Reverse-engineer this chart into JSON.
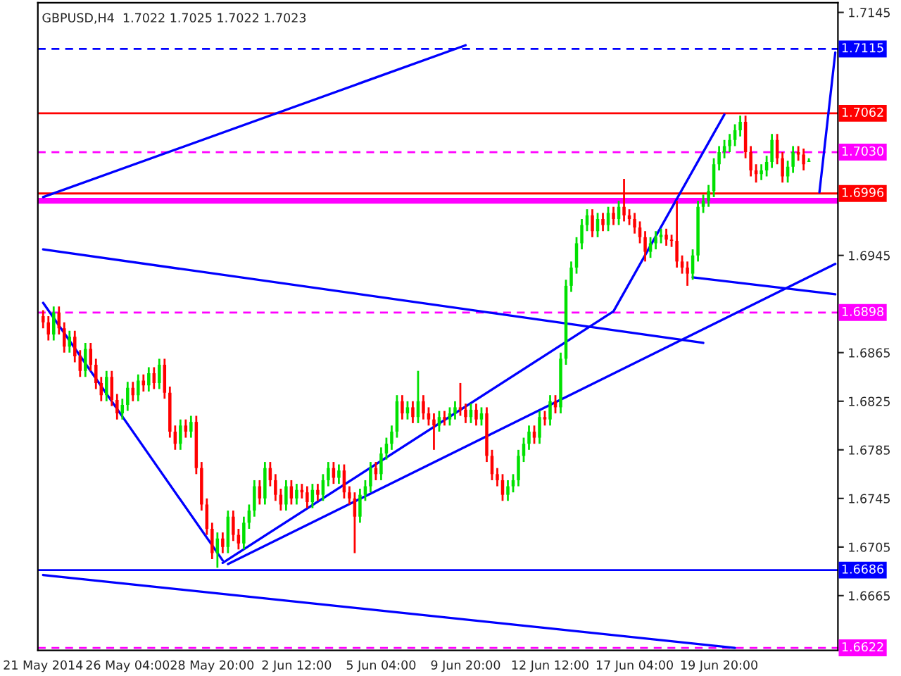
{
  "chart_data": {
    "type": "candlestick",
    "title": "GBPUSD,H4  1.7022 1.7025 1.7022 1.7023",
    "categories": [
      "21 May 2014",
      null,
      null,
      null,
      null,
      null,
      null,
      null,
      null,
      null,
      null,
      null,
      null,
      null,
      null,
      null,
      "26 May 04:00",
      null,
      null,
      null,
      null,
      null,
      null,
      null,
      null,
      null,
      null,
      null,
      null,
      null,
      null,
      null,
      "28 May 20:00",
      null,
      null,
      null,
      null,
      null,
      null,
      null,
      null,
      null,
      null,
      null,
      null,
      null,
      null,
      null,
      "2 Jun 12:00",
      null,
      null,
      null,
      null,
      null,
      null,
      null,
      null,
      null,
      null,
      null,
      null,
      null,
      null,
      null,
      "5 Jun 04:00",
      null,
      null,
      null,
      null,
      null,
      null,
      null,
      null,
      null,
      null,
      null,
      null,
      null,
      null,
      null,
      "9 Jun 20:00",
      null,
      null,
      null,
      null,
      null,
      null,
      null,
      null,
      null,
      null,
      null,
      null,
      null,
      null,
      null,
      "12 Jun 12:00",
      null,
      null,
      null,
      null,
      null,
      null,
      null,
      null,
      null,
      null,
      null,
      null,
      null,
      null,
      null,
      "17 Jun 04:00",
      null,
      null,
      null,
      null,
      null,
      null,
      null,
      null,
      null,
      null,
      null,
      null,
      null,
      null,
      null,
      "19 Jun 20:00",
      null,
      null,
      null,
      null,
      null,
      null,
      null,
      null,
      null,
      null,
      null,
      null,
      null,
      null,
      null,
      null,
      null,
      null,
      null,
      null,
      null,
      null
    ],
    "ohlc": [
      [
        1.6895,
        1.69,
        1.6885,
        1.689
      ],
      [
        1.689,
        1.6895,
        1.6875,
        1.688
      ],
      [
        1.688,
        1.6903,
        1.6875,
        1.6898
      ],
      [
        1.6898,
        1.6903,
        1.688,
        1.6885
      ],
      [
        1.6885,
        1.689,
        1.6865,
        1.687
      ],
      [
        1.687,
        1.6883,
        1.6865,
        1.6878
      ],
      [
        1.6878,
        1.6883,
        1.6857,
        1.6862
      ],
      [
        1.6862,
        1.6867,
        1.6845,
        1.685
      ],
      [
        1.685,
        1.6873,
        1.6845,
        1.6868
      ],
      [
        1.6868,
        1.6873,
        1.685,
        1.6855
      ],
      [
        1.6855,
        1.686,
        1.6835,
        1.684
      ],
      [
        1.684,
        1.6845,
        1.6825,
        1.683
      ],
      [
        1.683,
        1.685,
        1.6825,
        1.6845
      ],
      [
        1.6845,
        1.685,
        1.6821,
        1.6826
      ],
      [
        1.6826,
        1.6831,
        1.681,
        1.6815
      ],
      [
        1.6815,
        1.6827,
        1.681,
        1.6822
      ],
      [
        1.6822,
        1.6841,
        1.6817,
        1.6836
      ],
      [
        1.6836,
        1.6841,
        1.6825,
        1.683
      ],
      [
        1.683,
        1.6847,
        1.6825,
        1.6842
      ],
      [
        1.6842,
        1.6847,
        1.6833,
        1.6838
      ],
      [
        1.6838,
        1.6853,
        1.6833,
        1.6848
      ],
      [
        1.6848,
        1.6853,
        1.6835,
        1.684
      ],
      [
        1.684,
        1.686,
        1.6835,
        1.6855
      ],
      [
        1.6855,
        1.686,
        1.6827,
        1.6832
      ],
      [
        1.6832,
        1.6837,
        1.6795,
        1.68
      ],
      [
        1.68,
        1.6805,
        1.6785,
        1.679
      ],
      [
        1.679,
        1.681,
        1.6785,
        1.6805
      ],
      [
        1.6805,
        1.681,
        1.6795,
        1.68
      ],
      [
        1.68,
        1.6813,
        1.6795,
        1.6808
      ],
      [
        1.6808,
        1.6813,
        1.6765,
        1.677
      ],
      [
        1.677,
        1.6775,
        1.6735,
        1.674
      ],
      [
        1.674,
        1.6745,
        1.6715,
        1.672
      ],
      [
        1.672,
        1.6725,
        1.6695,
        1.67
      ],
      [
        1.67,
        1.6717,
        1.6688,
        1.6712
      ],
      [
        1.6712,
        1.6717,
        1.67,
        1.6705
      ],
      [
        1.6705,
        1.6735,
        1.67,
        1.673
      ],
      [
        1.673,
        1.6735,
        1.671,
        1.6715
      ],
      [
        1.6715,
        1.672,
        1.6703,
        1.6708
      ],
      [
        1.6708,
        1.673,
        1.6703,
        1.6725
      ],
      [
        1.6725,
        1.674,
        1.672,
        1.6735
      ],
      [
        1.6735,
        1.676,
        1.673,
        1.6755
      ],
      [
        1.6755,
        1.676,
        1.674,
        1.6745
      ],
      [
        1.6745,
        1.6775,
        1.674,
        1.677
      ],
      [
        1.677,
        1.6775,
        1.6755,
        1.676
      ],
      [
        1.676,
        1.6765,
        1.6743,
        1.6748
      ],
      [
        1.6748,
        1.6753,
        1.6735,
        1.674
      ],
      [
        1.674,
        1.676,
        1.6735,
        1.6755
      ],
      [
        1.6755,
        1.676,
        1.674,
        1.6745
      ],
      [
        1.6745,
        1.6757,
        1.674,
        1.6752
      ],
      [
        1.6752,
        1.6757,
        1.6745,
        1.675
      ],
      [
        1.675,
        1.6755,
        1.6737,
        1.6742
      ],
      [
        1.6742,
        1.6757,
        1.6737,
        1.6752
      ],
      [
        1.6752,
        1.6757,
        1.6743,
        1.6748
      ],
      [
        1.6748,
        1.6765,
        1.6743,
        1.676
      ],
      [
        1.676,
        1.6775,
        1.6755,
        1.677
      ],
      [
        1.677,
        1.6775,
        1.6757,
        1.6762
      ],
      [
        1.6762,
        1.6773,
        1.6757,
        1.6768
      ],
      [
        1.6768,
        1.6773,
        1.6745,
        1.675
      ],
      [
        1.675,
        1.6755,
        1.674,
        1.6745
      ],
      [
        1.6745,
        1.675,
        1.67,
        1.673
      ],
      [
        1.673,
        1.6753,
        1.6725,
        1.6748
      ],
      [
        1.6748,
        1.676,
        1.6743,
        1.6755
      ],
      [
        1.6755,
        1.6775,
        1.675,
        1.677
      ],
      [
        1.677,
        1.6775,
        1.676,
        1.6765
      ],
      [
        1.6765,
        1.6787,
        1.676,
        1.6782
      ],
      [
        1.6782,
        1.6795,
        1.6777,
        1.679
      ],
      [
        1.679,
        1.6805,
        1.6785,
        1.68
      ],
      [
        1.68,
        1.683,
        1.6795,
        1.6825
      ],
      [
        1.6825,
        1.683,
        1.681,
        1.6815
      ],
      [
        1.6815,
        1.6825,
        1.681,
        1.682
      ],
      [
        1.682,
        1.6825,
        1.6807,
        1.6812
      ],
      [
        1.6812,
        1.685,
        1.6807,
        1.6825
      ],
      [
        1.6825,
        1.683,
        1.681,
        1.6815
      ],
      [
        1.6815,
        1.682,
        1.6805,
        1.681
      ],
      [
        1.681,
        1.6815,
        1.6785,
        1.6805
      ],
      [
        1.6805,
        1.6817,
        1.68,
        1.6812
      ],
      [
        1.6812,
        1.6817,
        1.6805,
        1.681
      ],
      [
        1.681,
        1.682,
        1.6805,
        1.6815
      ],
      [
        1.6815,
        1.6825,
        1.681,
        1.682
      ],
      [
        1.682,
        1.684,
        1.6813,
        1.6818
      ],
      [
        1.6818,
        1.6823,
        1.6807,
        1.6812
      ],
      [
        1.6812,
        1.6823,
        1.6807,
        1.6818
      ],
      [
        1.6818,
        1.6823,
        1.6805,
        1.681
      ],
      [
        1.681,
        1.682,
        1.6805,
        1.6815
      ],
      [
        1.6815,
        1.682,
        1.6775,
        1.678
      ],
      [
        1.678,
        1.6785,
        1.676,
        1.6765
      ],
      [
        1.6765,
        1.677,
        1.6755,
        1.676
      ],
      [
        1.676,
        1.6765,
        1.6743,
        1.6748
      ],
      [
        1.6748,
        1.676,
        1.6743,
        1.6755
      ],
      [
        1.6755,
        1.6765,
        1.675,
        1.676
      ],
      [
        1.676,
        1.6785,
        1.6755,
        1.678
      ],
      [
        1.678,
        1.6795,
        1.6775,
        1.679
      ],
      [
        1.679,
        1.6805,
        1.6785,
        1.68
      ],
      [
        1.68,
        1.6805,
        1.679,
        1.6795
      ],
      [
        1.6795,
        1.6817,
        1.679,
        1.6812
      ],
      [
        1.6812,
        1.6817,
        1.6805,
        1.681
      ],
      [
        1.681,
        1.683,
        1.6805,
        1.6825
      ],
      [
        1.6825,
        1.683,
        1.6815,
        1.682
      ],
      [
        1.682,
        1.6865,
        1.6815,
        1.686
      ],
      [
        1.686,
        1.6925,
        1.6855,
        1.692
      ],
      [
        1.692,
        1.694,
        1.6915,
        1.6935
      ],
      [
        1.6935,
        1.696,
        1.693,
        1.6955
      ],
      [
        1.6955,
        1.6975,
        1.695,
        1.697
      ],
      [
        1.697,
        1.6983,
        1.6965,
        1.6978
      ],
      [
        1.6978,
        1.6983,
        1.696,
        1.6965
      ],
      [
        1.6965,
        1.698,
        1.696,
        1.6975
      ],
      [
        1.6975,
        1.698,
        1.6965,
        1.697
      ],
      [
        1.697,
        1.6985,
        1.6965,
        1.698
      ],
      [
        1.698,
        1.6985,
        1.697,
        1.6975
      ],
      [
        1.6975,
        1.699,
        1.697,
        1.6985
      ],
      [
        1.6985,
        1.7008,
        1.6973,
        1.6978
      ],
      [
        1.6978,
        1.6983,
        1.697,
        1.6975
      ],
      [
        1.6975,
        1.698,
        1.6963,
        1.6968
      ],
      [
        1.6968,
        1.6973,
        1.6955,
        1.696
      ],
      [
        1.696,
        1.6965,
        1.694,
        1.6948
      ],
      [
        1.6948,
        1.696,
        1.6943,
        1.6955
      ],
      [
        1.6955,
        1.6965,
        1.695,
        1.696
      ],
      [
        1.696,
        1.6967,
        1.6955,
        1.6962
      ],
      [
        1.6962,
        1.6967,
        1.6953,
        1.6958
      ],
      [
        1.6958,
        1.6962,
        1.6952,
        1.6957
      ],
      [
        1.6957,
        1.699,
        1.6935,
        1.694
      ],
      [
        1.694,
        1.6945,
        1.693,
        1.6935
      ],
      [
        1.6935,
        1.694,
        1.692,
        1.693
      ],
      [
        1.693,
        1.695,
        1.6925,
        1.6945
      ],
      [
        1.6945,
        1.699,
        1.694,
        1.6985
      ],
      [
        1.6985,
        1.6995,
        1.698,
        1.699
      ],
      [
        1.699,
        1.7003,
        1.6985,
        1.6998
      ],
      [
        1.6998,
        1.7025,
        1.6993,
        1.702
      ],
      [
        1.702,
        1.7035,
        1.7015,
        1.703
      ],
      [
        1.703,
        1.704,
        1.7025,
        1.7035
      ],
      [
        1.7035,
        1.7045,
        1.703,
        1.704
      ],
      [
        1.704,
        1.7053,
        1.7035,
        1.7048
      ],
      [
        1.7048,
        1.706,
        1.7043,
        1.7055
      ],
      [
        1.7055,
        1.706,
        1.7025,
        1.703
      ],
      [
        1.703,
        1.7035,
        1.701,
        1.7015
      ],
      [
        1.7015,
        1.702,
        1.7005,
        1.7012
      ],
      [
        1.7012,
        1.702,
        1.7007,
        1.7015
      ],
      [
        1.7015,
        1.7027,
        1.701,
        1.7022
      ],
      [
        1.7022,
        1.7045,
        1.7017,
        1.704
      ],
      [
        1.704,
        1.7045,
        1.702,
        1.7025
      ],
      [
        1.7025,
        1.703,
        1.7005,
        1.701
      ],
      [
        1.701,
        1.7023,
        1.7005,
        1.7018
      ],
      [
        1.7018,
        1.7035,
        1.7013,
        1.703
      ],
      [
        1.703,
        1.7035,
        1.7023,
        1.7028
      ],
      [
        1.7028,
        1.7033,
        1.7015,
        1.702
      ],
      [
        1.7022,
        1.7025,
        1.7022,
        1.7023
      ],
      null,
      null,
      null,
      null,
      null
    ],
    "colors": [
      "#ff0000",
      "#ff0000",
      "#00e000",
      "#ff0000",
      "#ff0000",
      "#00e000",
      "#ff0000",
      "#ff0000",
      "#00e000",
      "#ff0000",
      "#ff0000",
      "#ff0000",
      "#00e000",
      "#ff0000",
      "#ff0000",
      "#00e000",
      "#00e000",
      "#ff0000",
      "#00e000",
      "#ff0000",
      "#00e000",
      "#ff0000",
      "#00e000",
      "#ff0000",
      "#ff0000",
      "#ff0000",
      "#00e000",
      "#ff0000",
      "#00e000",
      "#ff0000",
      "#ff0000",
      "#ff0000",
      "#ff0000",
      "#00e000",
      "#ff0000",
      "#00e000",
      "#ff0000",
      "#ff0000",
      "#00e000",
      "#00e000",
      "#00e000",
      "#ff0000",
      "#00e000",
      "#ff0000",
      "#ff0000",
      "#ff0000",
      "#00e000",
      "#ff0000",
      "#00e000",
      "#ff0000",
      "#ff0000",
      "#00e000",
      "#ff0000",
      "#00e000",
      "#00e000",
      "#ff0000",
      "#00e000",
      "#ff0000",
      "#ff0000",
      "#ff0000",
      "#00e000",
      "#00e000",
      "#00e000",
      "#ff0000",
      "#00e000",
      "#00e000",
      "#00e000",
      "#00e000",
      "#ff0000",
      "#00e000",
      "#ff0000",
      "#00e000",
      "#ff0000",
      "#ff0000",
      "#ff0000",
      "#00e000",
      "#ff0000",
      "#00e000",
      "#00e000",
      "#ff0000",
      "#ff0000",
      "#00e000",
      "#ff0000",
      "#00e000",
      "#ff0000",
      "#ff0000",
      "#ff0000",
      "#ff0000",
      "#00e000",
      "#00e000",
      "#00e000",
      "#00e000",
      "#00e000",
      "#ff0000",
      "#00e000",
      "#ff0000",
      "#00e000",
      "#ff0000",
      "#00e000",
      "#00e000",
      "#00e000",
      "#00e000",
      "#00e000",
      "#00e000",
      "#ff0000",
      "#00e000",
      "#ff0000",
      "#00e000",
      "#ff0000",
      "#00e000",
      "#ff0000",
      "#ff0000",
      "#ff0000",
      "#ff0000",
      "#ff0000",
      "#00e000",
      "#00e000",
      "#00e000",
      "#ff0000",
      "#ff0000",
      "#ff0000",
      "#ff0000",
      "#ff0000",
      "#00e000",
      "#00e000",
      "#00e000",
      "#00e000",
      "#00e000",
      "#00e000",
      "#00e000",
      "#00e000",
      "#00e000",
      "#00e000",
      "#ff0000",
      "#ff0000",
      "#ff0000",
      "#00e000",
      "#00e000",
      "#00e000",
      "#ff0000",
      "#ff0000",
      "#00e000",
      "#00e000",
      "#ff0000",
      "#ff0000",
      "#00e000",
      null,
      null,
      null,
      null,
      null
    ],
    "series": [
      {
        "type": "line",
        "color": "#0000ff",
        "values": [
          1.6906,
          null,
          null,
          null,
          null,
          null,
          null,
          null,
          null,
          null,
          null,
          null,
          null,
          null,
          null,
          null,
          null,
          null,
          null,
          null,
          null,
          null,
          null,
          null,
          null,
          null,
          null,
          null,
          null,
          null,
          null,
          null,
          null,
          null,
          1.6694,
          null,
          null,
          null,
          null,
          null,
          null,
          null,
          null,
          null,
          null,
          null,
          null,
          null,
          null,
          null,
          null,
          null,
          null,
          null,
          null,
          null,
          null,
          null,
          null,
          null,
          null,
          null,
          null,
          null,
          null,
          null,
          null,
          null,
          null,
          null,
          null,
          null,
          null,
          null,
          null,
          null,
          null,
          null,
          null,
          null,
          null,
          null,
          null,
          null,
          null,
          null,
          null,
          null,
          null,
          null,
          null,
          null,
          null,
          null,
          null,
          null,
          null,
          null,
          null,
          null,
          null,
          null,
          null,
          null,
          null,
          null,
          null,
          null,
          null,
          null,
          null,
          null,
          null,
          null,
          null,
          null,
          null,
          null,
          null,
          null,
          null,
          null,
          null,
          null,
          null,
          null,
          null,
          null,
          null,
          null,
          null,
          null,
          null,
          null,
          null,
          null,
          null,
          null,
          null,
          null,
          null,
          null,
          null,
          null,
          null,
          null,
          null,
          null,
          null,
          null,
          null
        ]
      },
      {
        "type": "line",
        "color": "#0000ff",
        "values": [
          null,
          null,
          null,
          null,
          null,
          null,
          null,
          null,
          null,
          null,
          null,
          null,
          null,
          null,
          null,
          null,
          null,
          null,
          null,
          null,
          null,
          null,
          null,
          null,
          null,
          null,
          null,
          null,
          null,
          null,
          null,
          null,
          null,
          null,
          1.6692,
          null,
          null,
          null,
          null,
          null,
          null,
          null,
          null,
          null,
          null,
          null,
          null,
          null,
          null,
          null,
          null,
          null,
          null,
          null,
          null,
          null,
          null,
          null,
          null,
          null,
          null,
          null,
          null,
          null,
          null,
          null,
          null,
          null,
          null,
          null,
          null,
          null,
          null,
          null,
          null,
          null,
          null,
          null,
          null,
          null,
          null,
          null,
          null,
          null,
          null,
          null,
          null,
          null,
          null,
          null,
          null,
          null,
          null,
          null,
          null,
          null,
          null,
          null,
          null,
          null,
          null,
          null,
          null,
          null,
          null,
          null,
          null,
          null,
          1.6899,
          null,
          null,
          null,
          null,
          null,
          null,
          null,
          null,
          null,
          null,
          null,
          null,
          null,
          null,
          null,
          null,
          null,
          null,
          null,
          null,
          1.7061,
          null,
          null,
          null,
          null,
          null,
          null,
          null,
          null,
          null,
          null,
          null,
          null,
          null,
          null,
          null,
          null,
          null,
          null,
          null,
          null,
          null
        ]
      },
      {
        "type": "line",
        "color": "#0000ff",
        "values": [
          1.6993,
          null,
          null,
          null,
          null,
          null,
          null,
          null,
          null,
          null,
          null,
          null,
          null,
          null,
          null,
          null,
          null,
          null,
          null,
          null,
          null,
          null,
          null,
          null,
          null,
          null,
          null,
          null,
          null,
          null,
          null,
          null,
          null,
          null,
          null,
          null,
          null,
          null,
          null,
          null,
          null,
          null,
          null,
          null,
          null,
          null,
          null,
          null,
          null,
          null,
          null,
          null,
          null,
          null,
          null,
          null,
          null,
          null,
          null,
          null,
          null,
          null,
          null,
          null,
          null,
          null,
          null,
          null,
          null,
          null,
          null,
          null,
          null,
          null,
          null,
          null,
          null,
          null,
          null,
          null,
          1.7118,
          null,
          null,
          null,
          null,
          null,
          null,
          null,
          null,
          null,
          null,
          null,
          null,
          null,
          null,
          null,
          null,
          null,
          null,
          null,
          null,
          null,
          null,
          null,
          null,
          null,
          null,
          null,
          null,
          null,
          null,
          null,
          null,
          null,
          null,
          null,
          null,
          null,
          null,
          null,
          null,
          null,
          null,
          null,
          null,
          null,
          null,
          null,
          null,
          null,
          null,
          null,
          null,
          null,
          null,
          null,
          null,
          null,
          null,
          null,
          null,
          null,
          null,
          null,
          null,
          null,
          null,
          null,
          null,
          null,
          null
        ]
      },
      {
        "type": "line",
        "color": "#0000ff",
        "values": [
          1.695,
          null,
          null,
          null,
          null,
          null,
          null,
          null,
          null,
          null,
          null,
          null,
          null,
          null,
          null,
          null,
          null,
          null,
          null,
          null,
          null,
          null,
          null,
          null,
          null,
          null,
          null,
          null,
          null,
          null,
          null,
          null,
          null,
          null,
          null,
          null,
          null,
          null,
          null,
          null,
          null,
          null,
          null,
          null,
          null,
          null,
          null,
          null,
          null,
          null,
          null,
          null,
          null,
          null,
          null,
          null,
          null,
          null,
          null,
          null,
          null,
          null,
          null,
          null,
          null,
          null,
          null,
          null,
          null,
          null,
          null,
          null,
          null,
          null,
          null,
          null,
          null,
          null,
          null,
          null,
          null,
          null,
          null,
          null,
          null,
          null,
          null,
          null,
          null,
          null,
          null,
          null,
          null,
          null,
          null,
          null,
          null,
          null,
          null,
          null,
          null,
          null,
          null,
          null,
          null,
          null,
          null,
          null,
          null,
          null,
          null,
          null,
          null,
          null,
          null,
          null,
          null,
          null,
          null,
          null,
          null,
          null,
          null,
          null,
          null,
          1.6873,
          null,
          null,
          null,
          null,
          null,
          null,
          null,
          null,
          null,
          null,
          null,
          null,
          null,
          null,
          null,
          null,
          null,
          null,
          null,
          null,
          null,
          null,
          null,
          null,
          null
        ]
      },
      {
        "type": "line",
        "color": "#0000ff",
        "values": [
          null,
          null,
          null,
          null,
          null,
          null,
          null,
          null,
          null,
          null,
          null,
          null,
          null,
          null,
          null,
          null,
          null,
          null,
          null,
          null,
          null,
          null,
          null,
          null,
          null,
          null,
          null,
          null,
          null,
          null,
          null,
          null,
          null,
          null,
          null,
          null,
          null,
          null,
          null,
          null,
          null,
          null,
          null,
          null,
          null,
          null,
          null,
          null,
          null,
          null,
          null,
          null,
          null,
          null,
          null,
          null,
          null,
          null,
          null,
          null,
          null,
          null,
          null,
          null,
          null,
          null,
          null,
          null,
          null,
          null,
          null,
          null,
          null,
          null,
          null,
          null,
          null,
          null,
          null,
          null,
          null,
          null,
          null,
          null,
          null,
          null,
          null,
          null,
          null,
          null,
          null,
          null,
          null,
          null,
          null,
          null,
          null,
          null,
          null,
          null,
          null,
          null,
          null,
          null,
          null,
          null,
          null,
          null,
          null,
          null,
          null,
          null,
          null,
          null,
          null,
          null,
          null,
          null,
          null,
          null,
          null,
          null,
          null,
          1.6927,
          null,
          null,
          null,
          null,
          null,
          null,
          null,
          null,
          null,
          null,
          null,
          null,
          null,
          null,
          null,
          null,
          null,
          null,
          null,
          null,
          null,
          null,
          null,
          null,
          null,
          null,
          1.6913
        ]
      },
      {
        "type": "line",
        "color": "#0000ff",
        "values": [
          null,
          null,
          null,
          null,
          null,
          null,
          null,
          null,
          null,
          null,
          null,
          null,
          null,
          null,
          null,
          null,
          null,
          null,
          null,
          null,
          null,
          null,
          null,
          null,
          null,
          null,
          null,
          null,
          null,
          null,
          null,
          null,
          null,
          null,
          null,
          1.6691,
          null,
          null,
          null,
          null,
          null,
          null,
          null,
          null,
          null,
          null,
          null,
          null,
          null,
          null,
          null,
          null,
          null,
          null,
          null,
          null,
          null,
          null,
          null,
          null,
          null,
          null,
          null,
          null,
          null,
          null,
          null,
          null,
          null,
          null,
          null,
          null,
          null,
          null,
          null,
          null,
          null,
          null,
          null,
          null,
          null,
          null,
          null,
          null,
          null,
          null,
          null,
          null,
          null,
          null,
          null,
          null,
          null,
          null,
          null,
          null,
          null,
          null,
          null,
          null,
          null,
          null,
          null,
          null,
          null,
          null,
          null,
          null,
          null,
          null,
          null,
          null,
          null,
          null,
          null,
          null,
          null,
          null,
          null,
          null,
          null,
          null,
          null,
          null,
          null,
          null,
          null,
          null,
          null,
          null,
          null,
          null,
          null,
          null,
          null,
          null,
          null,
          null,
          null,
          null,
          null,
          null,
          null,
          null,
          null,
          null,
          null,
          null,
          null,
          null,
          1.6938
        ]
      },
      {
        "type": "line",
        "color": "#0000ff",
        "values": [
          null,
          null,
          null,
          null,
          null,
          null,
          null,
          null,
          null,
          null,
          null,
          null,
          null,
          null,
          null,
          null,
          null,
          null,
          null,
          null,
          null,
          null,
          null,
          null,
          null,
          null,
          null,
          null,
          null,
          null,
          null,
          null,
          null,
          null,
          null,
          null,
          null,
          null,
          null,
          null,
          null,
          null,
          null,
          null,
          null,
          null,
          null,
          null,
          null,
          null,
          null,
          null,
          null,
          null,
          null,
          null,
          null,
          null,
          null,
          null,
          null,
          null,
          null,
          null,
          null,
          null,
          null,
          null,
          null,
          null,
          null,
          null,
          null,
          null,
          null,
          null,
          null,
          null,
          null,
          null,
          null,
          null,
          null,
          null,
          null,
          null,
          null,
          null,
          null,
          null,
          null,
          null,
          null,
          null,
          null,
          null,
          null,
          null,
          null,
          null,
          null,
          null,
          null,
          null,
          null,
          null,
          null,
          null,
          null,
          null,
          null,
          null,
          null,
          null,
          null,
          null,
          null,
          null,
          null,
          null,
          null,
          null,
          null,
          null,
          null,
          null,
          null,
          null,
          null,
          null,
          null,
          null,
          null,
          null,
          null,
          null,
          null,
          null,
          null,
          null,
          null,
          null,
          null,
          null,
          null,
          null,
          null,
          1.6997,
          null,
          null,
          1.7112
        ]
      },
      {
        "type": "line",
        "color": "#0000ff",
        "values": [
          1.6682,
          null,
          null,
          null,
          null,
          null,
          null,
          null,
          null,
          null,
          null,
          null,
          null,
          null,
          null,
          null,
          null,
          null,
          null,
          null,
          null,
          null,
          null,
          null,
          null,
          null,
          null,
          null,
          null,
          null,
          null,
          null,
          null,
          null,
          null,
          null,
          null,
          null,
          null,
          null,
          null,
          null,
          null,
          null,
          null,
          null,
          null,
          null,
          null,
          null,
          null,
          null,
          null,
          null,
          null,
          null,
          null,
          null,
          null,
          null,
          null,
          null,
          null,
          null,
          null,
          null,
          null,
          null,
          null,
          null,
          null,
          null,
          null,
          null,
          null,
          null,
          null,
          null,
          null,
          null,
          null,
          null,
          null,
          null,
          null,
          null,
          null,
          null,
          null,
          null,
          null,
          null,
          null,
          null,
          null,
          null,
          null,
          null,
          null,
          null,
          null,
          null,
          null,
          null,
          null,
          null,
          null,
          null,
          null,
          null,
          null,
          null,
          null,
          null,
          null,
          null,
          null,
          null,
          null,
          null,
          null,
          null,
          null,
          null,
          null,
          null,
          null,
          null,
          null,
          null,
          null,
          1.6622,
          null,
          null,
          null,
          null,
          null,
          null,
          null,
          null,
          null,
          null,
          null,
          null,
          null,
          null,
          null,
          null,
          null,
          null,
          null
        ]
      }
    ],
    "ref_lines": [
      {
        "axis": "y",
        "value": 1.7115,
        "label": "1.7115",
        "color": "#0000ff",
        "line_style": "dashed"
      },
      {
        "axis": "y",
        "value": 1.7062,
        "label": "1.7062",
        "color": "#ff0000",
        "line_style": "solid"
      },
      {
        "axis": "y",
        "value": 1.703,
        "label": "1.7030",
        "color": "#ff00ff",
        "line_style": "dashed"
      },
      {
        "axis": "y",
        "value": 1.6996,
        "label": "1.6996",
        "color": "#ff0000",
        "line_style": "solid"
      },
      {
        "axis": "y",
        "value": 1.699,
        "label": null,
        "color": "#ff00ff",
        "line_style": "solid"
      },
      {
        "axis": "y",
        "value": 1.6898,
        "label": "1.6898",
        "color": "#ff00ff",
        "line_style": "dashed"
      },
      {
        "axis": "y",
        "value": 1.6686,
        "label": "1.6686",
        "color": "#0000ff",
        "line_style": "solid"
      },
      {
        "axis": "y",
        "value": 1.6622,
        "label": "1.6622",
        "color": "#ff00ff",
        "line_style": "dashed"
      }
    ],
    "ylim": [
      1.662,
      1.7153
    ],
    "yticks": [
      1.7145,
      1.6945,
      1.6865,
      1.6825,
      1.6785,
      1.6745,
      1.6705,
      1.6665
    ],
    "grid": false,
    "legend": false
  }
}
